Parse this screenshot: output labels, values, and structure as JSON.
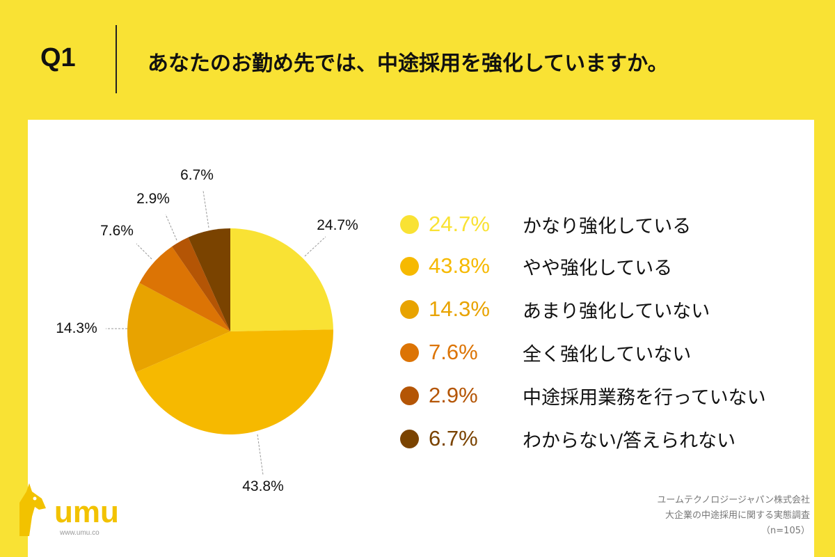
{
  "header": {
    "q_label": "Q1",
    "question": "あなたのお勤め先では、中途採用を強化していますか。"
  },
  "chart_data": {
    "type": "pie",
    "title": "",
    "series": [
      {
        "label": "かなり強化している",
        "value": 24.7,
        "display": "24.7%",
        "color": "#f9e234"
      },
      {
        "label": "やや強化している",
        "value": 43.8,
        "display": "43.8%",
        "color": "#f6b900"
      },
      {
        "label": "あまり強化していない",
        "value": 14.3,
        "display": "14.3%",
        "color": "#e8a300"
      },
      {
        "label": "全く強化していない",
        "value": 7.6,
        "display": "7.6%",
        "color": "#dc7405"
      },
      {
        "label": "中途採用業務を行っていない",
        "value": 2.9,
        "display": "2.9%",
        "color": "#b45505"
      },
      {
        "label": "わからない/答えられない",
        "value": 6.7,
        "display": "6.7%",
        "color": "#7a4300"
      }
    ],
    "legend_position": "right"
  },
  "legend_pct_colors": [
    "#f9e234",
    "#f6b900",
    "#e8a300",
    "#dc7405",
    "#b45505",
    "#7a4300"
  ],
  "source": {
    "line1": "ユームテクノロジージャパン株式会社",
    "line2": "大企業の中途採用に関する実態調査",
    "line3": "（n=105）"
  },
  "logo": {
    "text": "umu",
    "url": "www.umu.co",
    "color": "#f2c200"
  }
}
